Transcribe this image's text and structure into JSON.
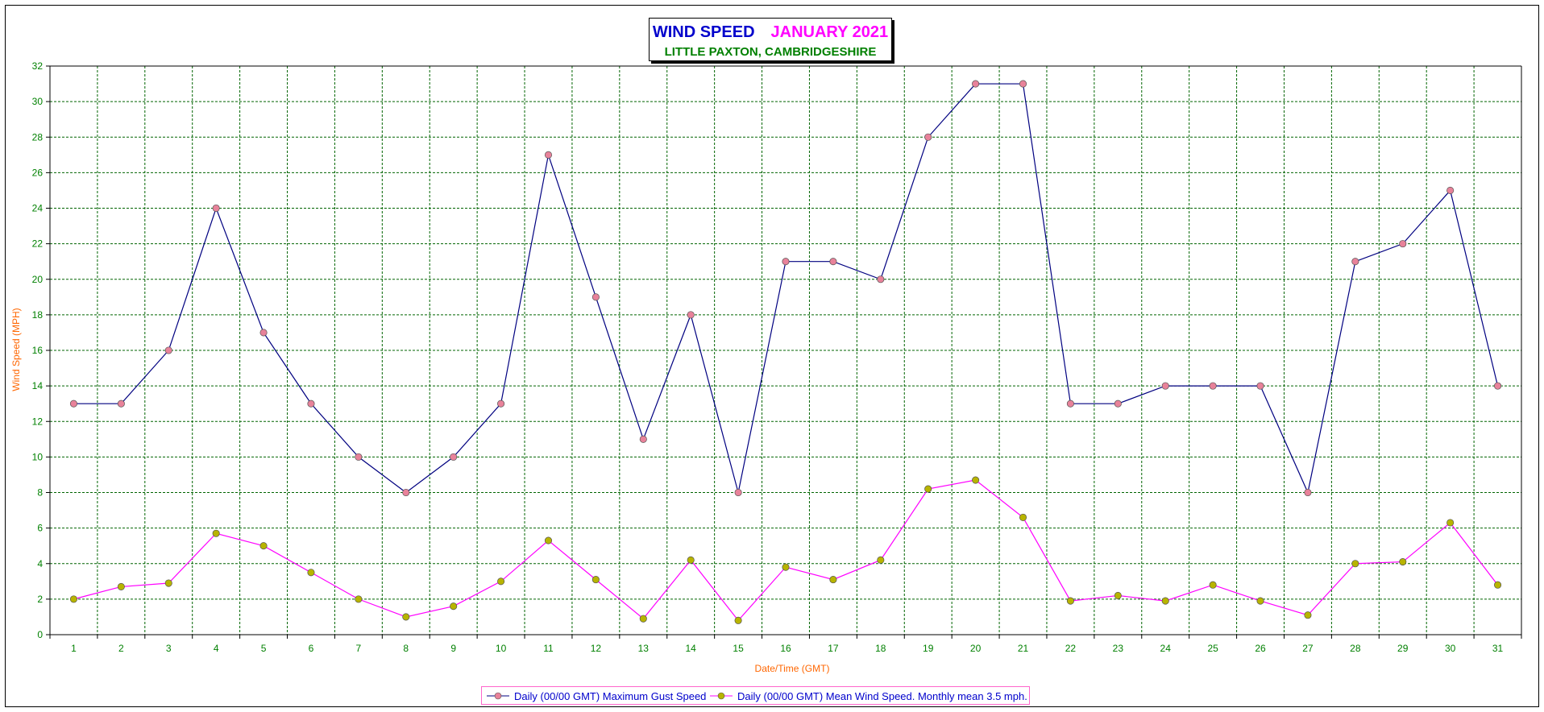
{
  "chart_data": {
    "type": "line",
    "title": "WIND SPEED",
    "title_month": "JANUARY 2021",
    "subtitle": "LITTLE PAXTON, CAMBRIDGESHIRE",
    "xlabel": "Date/Time (GMT)",
    "ylabel": "Wind Speed (MPH)",
    "ylim": [
      0,
      32
    ],
    "ytick_step": 2,
    "grid": true,
    "legend_position": "bottom",
    "categories": [
      "1",
      "2",
      "3",
      "4",
      "5",
      "6",
      "7",
      "8",
      "9",
      "10",
      "11",
      "12",
      "13",
      "14",
      "15",
      "16",
      "17",
      "18",
      "19",
      "20",
      "21",
      "22",
      "23",
      "24",
      "25",
      "26",
      "27",
      "28",
      "29",
      "30",
      "31"
    ],
    "series": [
      {
        "name": "Daily (00/00 GMT) Maximum Gust Speed",
        "line_color": "#000080",
        "marker_color": "#e8829a",
        "values": [
          13,
          13,
          16,
          24,
          17,
          13,
          10,
          8,
          10,
          13,
          27,
          19,
          11,
          18,
          8,
          21,
          21,
          20,
          28,
          31,
          31,
          13,
          13,
          14,
          14,
          14,
          8,
          21,
          22,
          25,
          14
        ]
      },
      {
        "name": "Daily (00/00 GMT) Mean Wind Speed. Monthly mean 3.5 mph.",
        "line_color": "#ff00ff",
        "marker_color": "#b8b400",
        "values": [
          2.0,
          2.7,
          2.9,
          5.7,
          5.0,
          3.5,
          2.0,
          1.0,
          1.6,
          3.0,
          5.3,
          3.1,
          0.9,
          4.2,
          0.8,
          3.8,
          3.1,
          4.2,
          8.2,
          8.7,
          6.6,
          1.9,
          2.2,
          1.9,
          2.8,
          1.9,
          1.1,
          4.0,
          4.1,
          6.3,
          2.8
        ]
      }
    ]
  }
}
